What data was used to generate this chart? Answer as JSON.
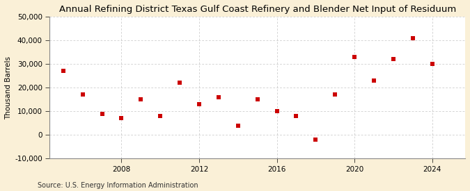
{
  "title": "Annual Refining District Texas Gulf Coast Refinery and Blender Net Input of Residuum",
  "ylabel": "Thousand Barrels",
  "source": "Source: U.S. Energy Information Administration",
  "years": [
    2005,
    2006,
    2007,
    2008,
    2009,
    2010,
    2011,
    2012,
    2013,
    2014,
    2015,
    2016,
    2017,
    2018,
    2019,
    2020,
    2021,
    2022,
    2023,
    2024
  ],
  "values": [
    27000,
    17000,
    9000,
    7000,
    15000,
    8000,
    22000,
    13000,
    16000,
    4000,
    15000,
    10000,
    8000,
    -2000,
    17000,
    33000,
    23000,
    32000,
    41000,
    30000
  ],
  "marker_color": "#CC0000",
  "marker": "s",
  "marker_size": 18,
  "ylim": [
    -10000,
    50000
  ],
  "xlim": [
    2004.3,
    2025.7
  ],
  "yticks": [
    -10000,
    0,
    10000,
    20000,
    30000,
    40000,
    50000
  ],
  "xticks": [
    2008,
    2012,
    2016,
    2020,
    2024
  ],
  "background_color": "#FAF0D7",
  "plot_bg_color": "#FFFFFF",
  "grid_color": "#AAAAAA",
  "title_fontsize": 9.5,
  "axis_fontsize": 7.5,
  "source_fontsize": 7
}
